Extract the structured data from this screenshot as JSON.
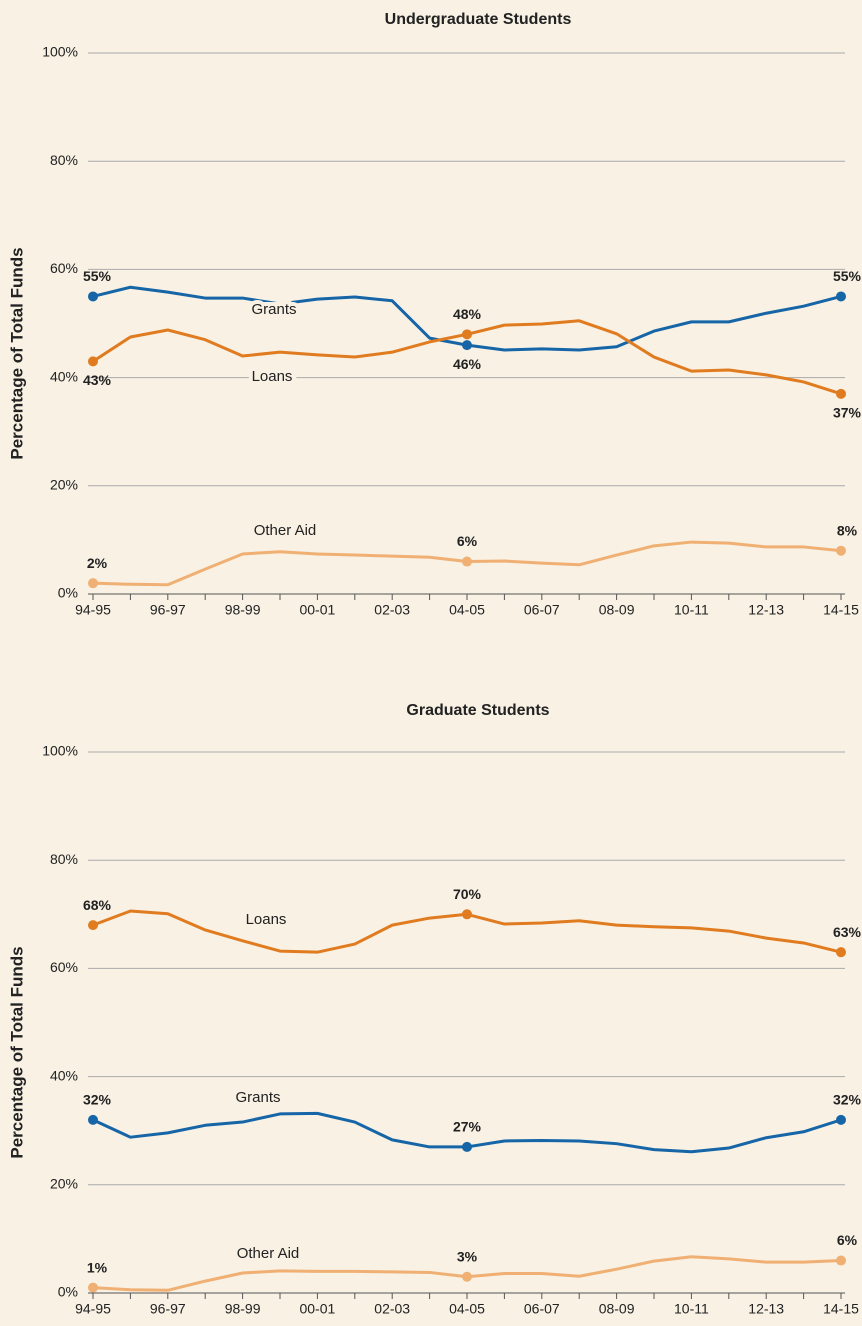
{
  "chart_data": [
    {
      "type": "line",
      "title": "Undergraduate Students",
      "ylabel": "Percentage of Total Funds",
      "categories": [
        "94-95",
        null,
        "96-97",
        null,
        "98-99",
        null,
        "00-01",
        null,
        "02-03",
        null,
        "04-05",
        null,
        "06-07",
        null,
        "08-09",
        null,
        "10-11",
        null,
        "12-13",
        null,
        "14-15"
      ],
      "ylim": [
        0,
        100
      ],
      "yticks": [
        {
          "value": 0,
          "label": "0%"
        },
        {
          "value": 20,
          "label": "20%"
        },
        {
          "value": 40,
          "label": "40%"
        },
        {
          "value": 60,
          "label": "60%"
        },
        {
          "value": 80,
          "label": "80%"
        },
        {
          "value": 100,
          "label": "100%"
        }
      ],
      "grid": true,
      "series": [
        {
          "name": "Grants",
          "color": "#1565a7",
          "values": [
            55,
            56.7,
            55.8,
            54.7,
            54.7,
            53.6,
            54.5,
            54.9,
            54.2,
            47.3,
            46,
            45.1,
            45.3,
            45.1,
            45.7,
            48.6,
            50.3,
            50.3,
            51.9,
            53.2,
            55
          ],
          "value_labels": [
            "55%",
            null,
            null,
            null,
            null,
            null,
            null,
            null,
            null,
            null,
            "46%",
            null,
            null,
            null,
            null,
            null,
            null,
            null,
            null,
            null,
            "55%"
          ]
        },
        {
          "name": "Loans",
          "color": "#e07b1f",
          "values": [
            43,
            47.5,
            48.8,
            47,
            44,
            44.7,
            44.2,
            43.8,
            44.7,
            46.6,
            48,
            49.7,
            49.9,
            50.5,
            48.1,
            43.8,
            41.2,
            41.4,
            40.5,
            39.2,
            37
          ],
          "value_labels": [
            "43%",
            null,
            null,
            null,
            null,
            null,
            null,
            null,
            null,
            null,
            "48%",
            null,
            null,
            null,
            null,
            null,
            null,
            null,
            null,
            null,
            "37%"
          ]
        },
        {
          "name": "Other Aid",
          "color": "#f0b073",
          "values": [
            2,
            1.8,
            1.7,
            4.6,
            7.4,
            7.8,
            7.4,
            7.2,
            7,
            6.8,
            6,
            6.1,
            5.7,
            5.4,
            7.2,
            8.9,
            9.6,
            9.4,
            8.7,
            8.7,
            8
          ],
          "value_labels": [
            "2%",
            null,
            null,
            null,
            null,
            null,
            null,
            null,
            null,
            null,
            "6%",
            null,
            null,
            null,
            null,
            null,
            null,
            null,
            null,
            null,
            "8%"
          ]
        }
      ]
    },
    {
      "type": "line",
      "title": "Graduate Students",
      "ylabel": "Percentage of Total Funds",
      "categories": [
        "94-95",
        null,
        "96-97",
        null,
        "98-99",
        null,
        "00-01",
        null,
        "02-03",
        null,
        "04-05",
        null,
        "06-07",
        null,
        "08-09",
        null,
        "10-11",
        null,
        "12-13",
        null,
        "14-15"
      ],
      "ylim": [
        0,
        100
      ],
      "yticks": [
        {
          "value": 0,
          "label": "0%"
        },
        {
          "value": 20,
          "label": "20%"
        },
        {
          "value": 40,
          "label": "40%"
        },
        {
          "value": 60,
          "label": "60%"
        },
        {
          "value": 80,
          "label": "80%"
        },
        {
          "value": 100,
          "label": "100%"
        }
      ],
      "grid": true,
      "series": [
        {
          "name": "Loans",
          "color": "#e07b1f",
          "values": [
            68,
            70.6,
            70.1,
            67.1,
            65.1,
            63.2,
            63,
            64.5,
            68,
            69.3,
            70,
            68.2,
            68.4,
            68.8,
            68,
            67.7,
            67.5,
            66.9,
            65.6,
            64.7,
            63
          ],
          "value_labels": [
            "68%",
            null,
            null,
            null,
            null,
            null,
            null,
            null,
            null,
            null,
            "70%",
            null,
            null,
            null,
            null,
            null,
            null,
            null,
            null,
            null,
            "63%"
          ]
        },
        {
          "name": "Grants",
          "color": "#1565a7",
          "values": [
            32,
            28.8,
            29.6,
            31,
            31.6,
            33.1,
            33.2,
            31.6,
            28.3,
            27,
            27,
            28.1,
            28.2,
            28.1,
            27.6,
            26.5,
            26.1,
            26.8,
            28.7,
            29.8,
            32
          ],
          "value_labels": [
            "32%",
            null,
            null,
            null,
            null,
            null,
            null,
            null,
            null,
            null,
            "27%",
            null,
            null,
            null,
            null,
            null,
            null,
            null,
            null,
            null,
            "32%"
          ]
        },
        {
          "name": "Other Aid",
          "color": "#f0b073",
          "values": [
            1,
            0.6,
            0.5,
            2.2,
            3.7,
            4.1,
            4,
            4,
            3.9,
            3.8,
            3,
            3.6,
            3.6,
            3.1,
            4.4,
            5.9,
            6.7,
            6.3,
            5.7,
            5.7,
            6
          ],
          "value_labels": [
            "1%",
            null,
            null,
            null,
            null,
            null,
            null,
            null,
            null,
            null,
            "3%",
            null,
            null,
            null,
            null,
            null,
            null,
            null,
            null,
            null,
            "6%"
          ]
        }
      ]
    }
  ]
}
